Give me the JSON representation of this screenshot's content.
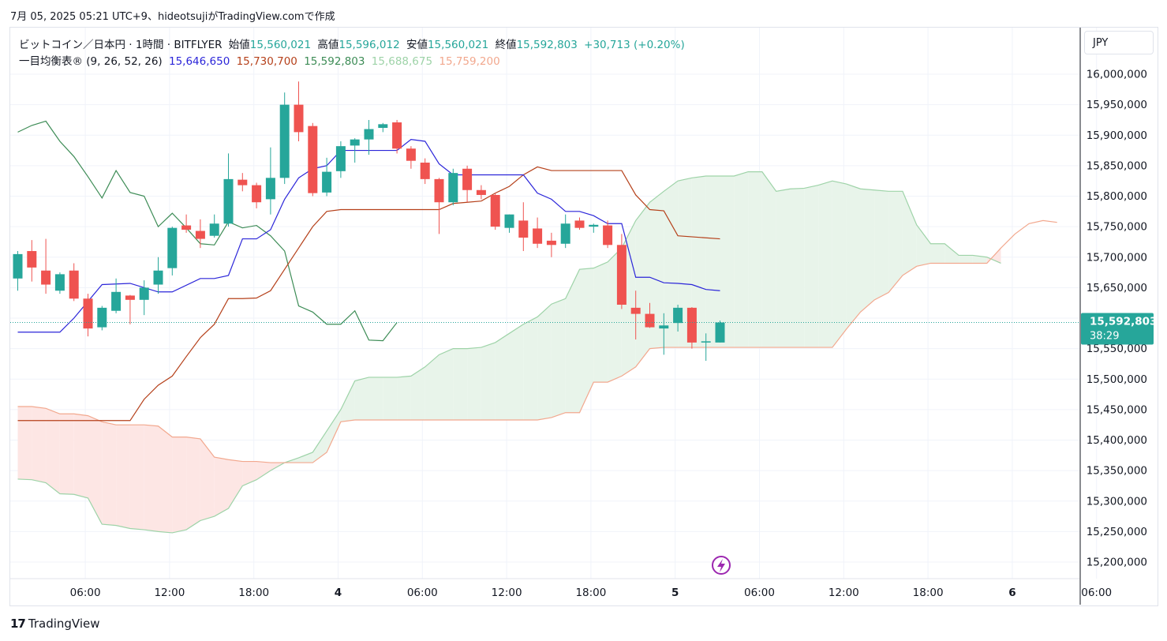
{
  "header": {
    "watermark": "7月 05, 2025 05:21 UTC+9、hideotsujiがTradingView.comで作成"
  },
  "legend": {
    "symbol": "ビットコイン／日本円 · 1時間 · BITFLYER",
    "open_label": "始値",
    "open_value": "15,560,021",
    "high_label": "高値",
    "high_value": "15,596,012",
    "low_label": "安値",
    "low_value": "15,560,021",
    "close_label": "終値",
    "close_value": "15,592,803",
    "change": "+30,713 (+0.20%)",
    "indicator_name": "一目均衡表® (9, 26, 52, 26)",
    "tenkan_value": "15,646,650",
    "kijun_value": "15,730,700",
    "chikou_value": "15,592,803",
    "spanA_value": "15,688,675",
    "spanB_value": "15,759,200"
  },
  "currency_button": "JPY",
  "price_tag": {
    "price": "15,592,803",
    "countdown": "38:29"
  },
  "footer": {
    "brand": "TradingView"
  },
  "colors": {
    "up": "#26a69a",
    "down": "#ef5350",
    "tenkan": "#2b25d9",
    "kijun": "#b5401a",
    "chikou": "#3d8c56",
    "spanA": "#9ed3a8",
    "spanB": "#f2a88e",
    "cloud_bull": "#e8f4ea",
    "cloud_bear": "#fde6e4",
    "legend_text": "#131722",
    "last_price_bg": "#26a69a"
  },
  "chart_data": {
    "type": "candlestick",
    "title": "ビットコイン／日本円 · 1時間 · BITFLYER",
    "ylim": [
      15170000,
      16040000
    ],
    "y_ticks": [
      "15,200,000",
      "15,250,000",
      "15,300,000",
      "15,350,000",
      "15,400,000",
      "15,450,000",
      "15,500,000",
      "15,550,000",
      "15,600,000",
      "15,650,000",
      "15,700,000",
      "15,750,000",
      "15,800,000",
      "15,850,000",
      "15,900,000",
      "15,950,000",
      "16,000,000"
    ],
    "x_ticks": [
      "06:00",
      "12:00",
      "18:00",
      "4",
      "06:00",
      "12:00",
      "18:00",
      "5",
      "06:00",
      "12:00",
      "18:00",
      "6",
      "06:00"
    ],
    "x_first_bar_index": 1,
    "x_tick_bar_index": [
      3,
      9,
      15,
      21,
      27,
      33,
      39,
      45,
      51,
      57,
      63,
      69,
      75
    ],
    "last_price": 15592803,
    "candles": [
      [
        15665000,
        15710000,
        15645000,
        15705000
      ],
      [
        15710000,
        15728000,
        15660000,
        15683000
      ],
      [
        15678000,
        15730000,
        15640000,
        15655000
      ],
      [
        15645000,
        15675000,
        15640000,
        15672000
      ],
      [
        15678000,
        15690000,
        15628000,
        15632000
      ],
      [
        15632000,
        15640000,
        15570000,
        15583000
      ],
      [
        15585000,
        15620000,
        15580000,
        15617000
      ],
      [
        15612000,
        15665000,
        15608000,
        15643000
      ],
      [
        15637000,
        15638000,
        15590000,
        15630000
      ],
      [
        15630000,
        15662000,
        15605000,
        15650000
      ],
      [
        15655000,
        15700000,
        15640000,
        15678000
      ],
      [
        15682000,
        15750000,
        15670000,
        15748000
      ],
      [
        15752000,
        15770000,
        15740000,
        15745000
      ],
      [
        15743000,
        15762000,
        15715000,
        15730000
      ],
      [
        15735000,
        15770000,
        15732000,
        15755000
      ],
      [
        15755000,
        15870000,
        15750000,
        15828000
      ],
      [
        15827000,
        15838000,
        15808000,
        15818000
      ],
      [
        15818000,
        15822000,
        15780000,
        15790000
      ],
      [
        15795000,
        15880000,
        15770000,
        15830000
      ],
      [
        15830000,
        15970000,
        15820000,
        15950000
      ],
      [
        15950000,
        15988000,
        15890000,
        15905000
      ],
      [
        15915000,
        15920000,
        15800000,
        15805000
      ],
      [
        15806000,
        15863000,
        15800000,
        15840000
      ],
      [
        15841000,
        15890000,
        15830000,
        15882000
      ],
      [
        15883000,
        15895000,
        15855000,
        15893000
      ],
      [
        15893000,
        15925000,
        15868000,
        15910000
      ],
      [
        15912000,
        15920000,
        15905000,
        15918000
      ],
      [
        15921000,
        15925000,
        15870000,
        15878000
      ],
      [
        15878000,
        15882000,
        15845000,
        15858000
      ],
      [
        15855000,
        15862000,
        15820000,
        15828000
      ],
      [
        15828000,
        15830000,
        15738000,
        15790000
      ],
      [
        15790000,
        15845000,
        15785000,
        15838000
      ],
      [
        15845000,
        15850000,
        15790000,
        15810000
      ],
      [
        15810000,
        15818000,
        15795000,
        15802000
      ],
      [
        15802000,
        15805000,
        15745000,
        15750000
      ],
      [
        15748000,
        15770000,
        15740000,
        15770000
      ],
      [
        15760000,
        15790000,
        15710000,
        15732000
      ],
      [
        15747000,
        15765000,
        15715000,
        15722000
      ],
      [
        15727000,
        15740000,
        15700000,
        15720000
      ],
      [
        15722000,
        15770000,
        15715000,
        15755000
      ],
      [
        15760000,
        15765000,
        15745000,
        15748000
      ],
      [
        15750000,
        15755000,
        15740000,
        15753000
      ],
      [
        15752000,
        15760000,
        15715000,
        15720000
      ],
      [
        15720000,
        15738000,
        15615000,
        15622000
      ],
      [
        15617000,
        15645000,
        15565000,
        15607000
      ],
      [
        15607000,
        15625000,
        15584000,
        15585000
      ],
      [
        15583000,
        15608000,
        15540000,
        15588000
      ],
      [
        15592000,
        15622000,
        15578000,
        15617000
      ],
      [
        15617000,
        15618000,
        15550000,
        15560000
      ],
      [
        15560000,
        15575000,
        15530000,
        15562000
      ],
      [
        15560021,
        15596012,
        15560021,
        15592803
      ]
    ],
    "tenkan": [
      [
        0,
        15577000
      ],
      [
        3,
        15577000
      ],
      [
        4,
        15600000
      ],
      [
        6,
        15655000
      ],
      [
        8,
        15657000
      ],
      [
        10,
        15643000
      ],
      [
        11,
        15643000
      ],
      [
        13,
        15665000
      ],
      [
        14,
        15665000
      ],
      [
        15,
        15670000
      ],
      [
        16,
        15730000
      ],
      [
        17,
        15730000
      ],
      [
        18,
        15745000
      ],
      [
        19,
        15795000
      ],
      [
        20,
        15830000
      ],
      [
        21,
        15845000
      ],
      [
        22,
        15850000
      ],
      [
        23,
        15875000
      ],
      [
        27,
        15875000
      ],
      [
        28,
        15893000
      ],
      [
        29,
        15890000
      ],
      [
        30,
        15853000
      ],
      [
        31,
        15835000
      ],
      [
        36,
        15835000
      ],
      [
        37,
        15805000
      ],
      [
        38,
        15795000
      ],
      [
        39,
        15775000
      ],
      [
        40,
        15775000
      ],
      [
        41,
        15768000
      ],
      [
        42,
        15755000
      ],
      [
        43,
        15755000
      ],
      [
        44,
        15667000
      ],
      [
        45,
        15667000
      ],
      [
        46,
        15658000
      ],
      [
        47,
        15657000
      ],
      [
        48,
        15655000
      ],
      [
        49,
        15647000
      ],
      [
        50,
        15645000
      ]
    ],
    "kijun": [
      [
        0,
        15432000
      ],
      [
        8,
        15432000
      ],
      [
        9,
        15467000
      ],
      [
        10,
        15490000
      ],
      [
        11,
        15505000
      ],
      [
        12,
        15537000
      ],
      [
        13,
        15568000
      ],
      [
        14,
        15590000
      ],
      [
        15,
        15632000
      ],
      [
        16,
        15632000
      ],
      [
        17,
        15633000
      ],
      [
        18,
        15645000
      ],
      [
        19,
        15680000
      ],
      [
        20,
        15715000
      ],
      [
        21,
        15750000
      ],
      [
        22,
        15775000
      ],
      [
        23,
        15778000
      ],
      [
        30,
        15778000
      ],
      [
        31,
        15788000
      ],
      [
        32,
        15790000
      ],
      [
        33,
        15792000
      ],
      [
        34,
        15805000
      ],
      [
        35,
        15816000
      ],
      [
        36,
        15835000
      ],
      [
        37,
        15848000
      ],
      [
        38,
        15842000
      ],
      [
        43,
        15842000
      ],
      [
        44,
        15802000
      ],
      [
        45,
        15778000
      ],
      [
        46,
        15776000
      ],
      [
        47,
        15735000
      ],
      [
        50,
        15730000
      ]
    ],
    "chikou": [
      [
        0,
        15905000
      ],
      [
        1,
        15916000
      ],
      [
        2,
        15923000
      ],
      [
        3,
        15890000
      ],
      [
        4,
        15865000
      ],
      [
        5,
        15832000
      ],
      [
        6,
        15797000
      ],
      [
        7,
        15842000
      ],
      [
        8,
        15806000
      ],
      [
        9,
        15800000
      ],
      [
        10,
        15750000
      ],
      [
        11,
        15772000
      ],
      [
        12,
        15748000
      ],
      [
        13,
        15722000
      ],
      [
        14,
        15720000
      ],
      [
        15,
        15758000
      ],
      [
        16,
        15748000
      ],
      [
        17,
        15752000
      ],
      [
        18,
        15735000
      ],
      [
        19,
        15710000
      ],
      [
        20,
        15620000
      ],
      [
        21,
        15610000
      ],
      [
        22,
        15590000
      ],
      [
        23,
        15590000
      ],
      [
        24,
        15612000
      ],
      [
        25,
        15564000
      ],
      [
        26,
        15563000
      ],
      [
        27,
        15592803
      ]
    ],
    "spanA": [
      [
        0,
        15336000
      ],
      [
        1,
        15335000
      ],
      [
        2,
        15330000
      ],
      [
        3,
        15312000
      ],
      [
        4,
        15311000
      ],
      [
        5,
        15305000
      ],
      [
        6,
        15262000
      ],
      [
        7,
        15260000
      ],
      [
        8,
        15255000
      ],
      [
        9,
        15253000
      ],
      [
        10,
        15250000
      ],
      [
        11,
        15248000
      ],
      [
        12,
        15253000
      ],
      [
        13,
        15268000
      ],
      [
        14,
        15275000
      ],
      [
        15,
        15288000
      ],
      [
        16,
        15325000
      ],
      [
        17,
        15335000
      ],
      [
        18,
        15350000
      ],
      [
        19,
        15363000
      ],
      [
        20,
        15371000
      ],
      [
        21,
        15380000
      ],
      [
        22,
        15415000
      ],
      [
        23,
        15450000
      ],
      [
        24,
        15497000
      ],
      [
        25,
        15503000
      ],
      [
        26,
        15503000
      ],
      [
        27,
        15503000
      ],
      [
        28,
        15505000
      ],
      [
        29,
        15520000
      ],
      [
        30,
        15540000
      ],
      [
        31,
        15550000
      ],
      [
        32,
        15550000
      ],
      [
        33,
        15552000
      ],
      [
        34,
        15560000
      ],
      [
        35,
        15575000
      ],
      [
        36,
        15590000
      ],
      [
        37,
        15602000
      ],
      [
        38,
        15623000
      ],
      [
        39,
        15632000
      ],
      [
        40,
        15680000
      ],
      [
        41,
        15682000
      ],
      [
        42,
        15692000
      ],
      [
        43,
        15715000
      ],
      [
        44,
        15760000
      ],
      [
        45,
        15790000
      ],
      [
        46,
        15808000
      ],
      [
        47,
        15825000
      ],
      [
        48,
        15830000
      ],
      [
        49,
        15833000
      ],
      [
        50,
        15833000
      ],
      [
        51,
        15833000
      ],
      [
        52,
        15840000
      ],
      [
        53,
        15840000
      ],
      [
        54,
        15808000
      ],
      [
        55,
        15812000
      ],
      [
        56,
        15813000
      ],
      [
        57,
        15818000
      ],
      [
        58,
        15825000
      ],
      [
        59,
        15820000
      ],
      [
        60,
        15812000
      ],
      [
        61,
        15810000
      ],
      [
        62,
        15808000
      ],
      [
        63,
        15808000
      ],
      [
        64,
        15753000
      ],
      [
        65,
        15722000
      ],
      [
        66,
        15722000
      ],
      [
        67,
        15703000
      ],
      [
        68,
        15703000
      ],
      [
        69,
        15700000
      ],
      [
        70,
        15690000
      ]
    ],
    "spanB": [
      [
        0,
        15455000
      ],
      [
        1,
        15455000
      ],
      [
        2,
        15452000
      ],
      [
        3,
        15443000
      ],
      [
        4,
        15443000
      ],
      [
        5,
        15440000
      ],
      [
        6,
        15430000
      ],
      [
        7,
        15425000
      ],
      [
        8,
        15425000
      ],
      [
        9,
        15425000
      ],
      [
        10,
        15423000
      ],
      [
        11,
        15405000
      ],
      [
        12,
        15405000
      ],
      [
        13,
        15402000
      ],
      [
        14,
        15372000
      ],
      [
        15,
        15368000
      ],
      [
        16,
        15365000
      ],
      [
        17,
        15365000
      ],
      [
        18,
        15363000
      ],
      [
        19,
        15363000
      ],
      [
        20,
        15363000
      ],
      [
        21,
        15363000
      ],
      [
        22,
        15380000
      ],
      [
        23,
        15430000
      ],
      [
        24,
        15433000
      ],
      [
        25,
        15433000
      ],
      [
        36,
        15433000
      ],
      [
        37,
        15433000
      ],
      [
        38,
        15437000
      ],
      [
        39,
        15445000
      ],
      [
        40,
        15445000
      ],
      [
        41,
        15495000
      ],
      [
        42,
        15495000
      ],
      [
        43,
        15505000
      ],
      [
        44,
        15520000
      ],
      [
        45,
        15550000
      ],
      [
        46,
        15552000
      ],
      [
        47,
        15552000
      ],
      [
        54,
        15552000
      ],
      [
        55,
        15552000
      ],
      [
        56,
        15552000
      ],
      [
        57,
        15552000
      ],
      [
        58,
        15552000
      ],
      [
        59,
        15582000
      ],
      [
        60,
        15610000
      ],
      [
        61,
        15630000
      ],
      [
        62,
        15642000
      ],
      [
        63,
        15670000
      ],
      [
        64,
        15685000
      ],
      [
        65,
        15690000
      ],
      [
        66,
        15690000
      ],
      [
        67,
        15690000
      ],
      [
        68,
        15690000
      ],
      [
        69,
        15690000
      ],
      [
        70,
        15715000
      ],
      [
        71,
        15738000
      ],
      [
        72,
        15755000
      ],
      [
        73,
        15760000
      ],
      [
        74,
        15757000
      ]
    ]
  }
}
